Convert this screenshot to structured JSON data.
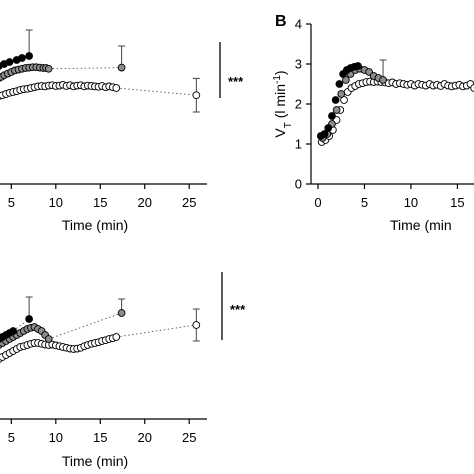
{
  "chart_data": [
    {
      "type": "scatter",
      "panel": "A (top-left, cropped)",
      "title": "",
      "xlabel": "Time (min)",
      "ylabel": "",
      "xlim": [
        3.5,
        27
      ],
      "ylim": [
        0,
        4
      ],
      "x_ticks": [
        "5",
        "10",
        "15",
        "20",
        "25"
      ],
      "grid": false,
      "significance": "***",
      "series": [
        {
          "marker": "filled-black",
          "x": [
            3.6,
            4.2,
            4.8,
            5.6,
            6.2,
            7
          ],
          "y": [
            2.95,
            3.0,
            3.05,
            3.1,
            3.15,
            3.2
          ],
          "error_top": [
            null,
            null,
            null,
            null,
            null,
            3.85
          ]
        },
        {
          "marker": "filled-gray",
          "x": [
            3.6,
            3.9,
            4.2,
            4.6,
            5.0,
            5.4,
            5.8,
            6.2,
            6.6,
            7.0,
            7.4,
            7.8,
            8.2,
            8.6,
            8.9,
            9.2,
            17.4
          ],
          "y": [
            2.65,
            2.68,
            2.72,
            2.76,
            2.8,
            2.84,
            2.86,
            2.88,
            2.9,
            2.91,
            2.92,
            2.92,
            2.91,
            2.9,
            2.9,
            2.88,
            2.91
          ],
          "error_top": [
            null,
            null,
            null,
            null,
            null,
            null,
            null,
            null,
            null,
            null,
            null,
            null,
            null,
            null,
            null,
            null,
            3.45
          ]
        },
        {
          "marker": "open",
          "x": [
            3.6,
            4.0,
            4.4,
            4.8,
            5.2,
            5.6,
            6.0,
            6.4,
            6.8,
            7.2,
            7.6,
            8.0,
            8.4,
            8.8,
            9.2,
            9.6,
            10.0,
            10.4,
            10.8,
            11.2,
            11.6,
            12.0,
            12.4,
            12.8,
            13.2,
            13.6,
            14.0,
            14.4,
            14.8,
            15.2,
            15.6,
            16.0,
            16.4,
            16.8,
            25.8
          ],
          "y": [
            2.2,
            2.22,
            2.25,
            2.28,
            2.3,
            2.32,
            2.35,
            2.37,
            2.38,
            2.4,
            2.42,
            2.44,
            2.45,
            2.44,
            2.46,
            2.47,
            2.45,
            2.46,
            2.48,
            2.45,
            2.47,
            2.44,
            2.46,
            2.47,
            2.44,
            2.46,
            2.45,
            2.44,
            2.43,
            2.45,
            2.42,
            2.44,
            2.42,
            2.4,
            2.22
          ],
          "error_top": [
            null,
            null,
            null,
            null,
            null,
            null,
            null,
            null,
            null,
            null,
            null,
            null,
            null,
            null,
            null,
            null,
            null,
            null,
            null,
            null,
            null,
            null,
            null,
            null,
            null,
            null,
            null,
            null,
            null,
            null,
            null,
            null,
            null,
            null,
            2.64
          ],
          "error_bottom": [
            null,
            null,
            null,
            null,
            null,
            null,
            null,
            null,
            null,
            null,
            null,
            null,
            null,
            null,
            null,
            null,
            null,
            null,
            null,
            null,
            null,
            null,
            null,
            null,
            null,
            null,
            null,
            null,
            null,
            null,
            null,
            null,
            null,
            null,
            1.8
          ]
        }
      ]
    },
    {
      "type": "scatter",
      "panel": "B (top-right, cropped)",
      "panel_letter": "B",
      "title": "",
      "xlabel": "Time (min",
      "ylabel_main": "V",
      "ylabel_sub": "T",
      "ylabel_rest": " (l min",
      "ylabel_sup": "-1",
      "ylabel_close": ")",
      "xlim": [
        0,
        17
      ],
      "ylim": [
        0,
        4
      ],
      "x_ticks": [
        "0",
        "5",
        "10",
        "15"
      ],
      "y_ticks": [
        "0",
        "1",
        "2",
        "3",
        "4"
      ],
      "grid": false,
      "series": [
        {
          "marker": "filled-black",
          "x": [
            0.3,
            0.7,
            1.1,
            1.5,
            1.9,
            2.3,
            2.7,
            3.1,
            3.5,
            3.9,
            4.3
          ],
          "y": [
            1.2,
            1.25,
            1.4,
            1.7,
            2.1,
            2.5,
            2.75,
            2.85,
            2.9,
            2.93,
            2.95
          ]
        },
        {
          "marker": "filled-gray",
          "x": [
            0.5,
            1.0,
            1.5,
            2.0,
            2.5,
            3.0,
            3.5,
            4.0,
            4.5,
            5.0,
            5.5,
            6.0,
            6.5,
            7.0
          ],
          "y": [
            1.15,
            1.25,
            1.5,
            1.85,
            2.25,
            2.6,
            2.75,
            2.85,
            2.88,
            2.85,
            2.8,
            2.7,
            2.65,
            2.6
          ],
          "error_top": [
            null,
            null,
            null,
            null,
            null,
            null,
            null,
            null,
            null,
            null,
            null,
            null,
            null,
            3.1
          ]
        },
        {
          "marker": "open",
          "x": [
            0.4,
            0.8,
            1.2,
            1.6,
            2.0,
            2.4,
            2.8,
            3.2,
            3.6,
            4.0,
            4.4,
            4.8,
            5.2,
            5.6,
            6.0,
            6.4,
            6.8,
            7.2,
            7.6,
            8.0,
            8.4,
            8.8,
            9.2,
            9.6,
            10.0,
            10.4,
            10.8,
            11.2,
            11.6,
            12.0,
            12.4,
            12.8,
            13.2,
            13.6,
            14.0,
            14.4,
            14.8,
            15.2,
            15.6,
            16.0,
            16.4,
            16.8
          ],
          "y": [
            1.05,
            1.1,
            1.2,
            1.35,
            1.6,
            1.85,
            2.1,
            2.3,
            2.4,
            2.45,
            2.5,
            2.52,
            2.55,
            2.56,
            2.55,
            2.56,
            2.55,
            2.54,
            2.52,
            2.54,
            2.5,
            2.52,
            2.5,
            2.48,
            2.5,
            2.46,
            2.5,
            2.48,
            2.46,
            2.5,
            2.46,
            2.48,
            2.45,
            2.5,
            2.46,
            2.44,
            2.46,
            2.48,
            2.44,
            2.46,
            2.5,
            2.4
          ]
        }
      ]
    },
    {
      "type": "scatter",
      "panel": "bottom-left, cropped",
      "title": "",
      "xlabel": "Time (min)",
      "ylabel": "",
      "xlim": [
        3.5,
        27
      ],
      "ylim": [
        0,
        4
      ],
      "x_ticks": [
        "5",
        "10",
        "15",
        "20",
        "25"
      ],
      "grid": false,
      "significance": "***",
      "series": [
        {
          "marker": "filled-black",
          "x": [
            3.6,
            4.0,
            4.4,
            4.8,
            5.2,
            7.0
          ],
          "y": [
            2.0,
            2.05,
            2.1,
            2.15,
            2.2,
            2.5
          ],
          "error_top": [
            null,
            null,
            null,
            null,
            null,
            3.05
          ]
        },
        {
          "marker": "filled-gray",
          "x": [
            3.6,
            4.0,
            4.4,
            4.8,
            5.2,
            5.6,
            6.0,
            6.4,
            6.8,
            7.2,
            7.6,
            8.0,
            8.4,
            8.8,
            9.2,
            17.4
          ],
          "y": [
            1.85,
            1.9,
            1.95,
            2.0,
            2.05,
            2.1,
            2.15,
            2.2,
            2.25,
            2.28,
            2.3,
            2.25,
            2.2,
            2.1,
            2.0,
            2.65
          ],
          "error_top": [
            null,
            null,
            null,
            null,
            null,
            null,
            null,
            null,
            null,
            null,
            null,
            null,
            null,
            null,
            null,
            3.0
          ]
        },
        {
          "marker": "open",
          "x": [
            3.6,
            4.0,
            4.4,
            4.8,
            5.2,
            5.6,
            6.0,
            6.4,
            6.8,
            7.2,
            7.6,
            8.0,
            8.4,
            8.8,
            9.2,
            9.6,
            10.0,
            10.4,
            10.8,
            11.2,
            11.6,
            12.0,
            12.4,
            12.8,
            13.2,
            13.6,
            14.0,
            14.4,
            14.8,
            15.2,
            15.6,
            16.0,
            16.4,
            16.8,
            25.8
          ],
          "y": [
            1.5,
            1.55,
            1.6,
            1.65,
            1.7,
            1.75,
            1.8,
            1.82,
            1.85,
            1.88,
            1.9,
            1.9,
            1.88,
            1.86,
            1.85,
            1.86,
            1.84,
            1.82,
            1.8,
            1.78,
            1.76,
            1.75,
            1.76,
            1.78,
            1.82,
            1.85,
            1.88,
            1.9,
            1.92,
            1.95,
            1.97,
            2.0,
            2.02,
            2.05,
            2.35
          ],
          "error_top": [
            null,
            null,
            null,
            null,
            null,
            null,
            null,
            null,
            null,
            null,
            null,
            null,
            null,
            null,
            null,
            null,
            null,
            null,
            null,
            null,
            null,
            null,
            null,
            null,
            null,
            null,
            null,
            null,
            null,
            null,
            null,
            null,
            null,
            null,
            2.75
          ],
          "error_bottom": [
            null,
            null,
            null,
            null,
            null,
            null,
            null,
            null,
            null,
            null,
            null,
            null,
            null,
            null,
            null,
            null,
            null,
            null,
            null,
            null,
            null,
            null,
            null,
            null,
            null,
            null,
            null,
            null,
            null,
            null,
            null,
            null,
            null,
            null,
            1.95
          ]
        }
      ]
    }
  ]
}
